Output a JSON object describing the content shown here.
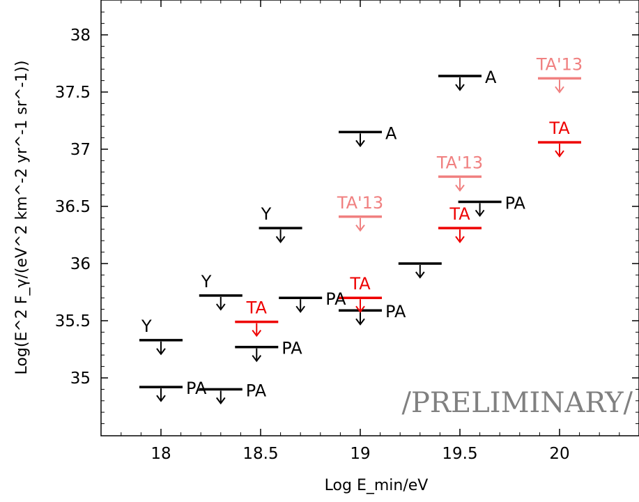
{
  "chart_data": {
    "type": "scatter",
    "title": "",
    "xlabel": "Log E_min/eV",
    "ylabel": "Log(E^2 F_γ/(eV^2 km^-2 yr^-1 sr^-1))",
    "xlim": [
      17.7,
      20.42
    ],
    "ylim": [
      34.5,
      38.3
    ],
    "xticks": [
      18,
      18.5,
      19,
      19.5,
      20
    ],
    "xtick_labels": [
      "18",
      "18.5",
      "19",
      "19.5",
      "20"
    ],
    "yticks": [
      35,
      35.5,
      36,
      36.5,
      37,
      37.5,
      38
    ],
    "ytick_labels": [
      "35",
      "35.5",
      "36",
      "36.5",
      "37",
      "37.5",
      "38"
    ],
    "grid": false,
    "marker": "upper-limit",
    "series": [
      {
        "name": "Y",
        "color": "#000000",
        "x": [
          18.0,
          18.3,
          18.6
        ],
        "y": [
          35.33,
          35.72,
          36.31
        ]
      },
      {
        "name": "PA",
        "color": "#000000",
        "x": [
          18.0,
          18.3,
          18.48,
          18.7,
          19.0,
          19.6
        ],
        "y": [
          34.92,
          34.9,
          35.27,
          35.7,
          35.59,
          36.54
        ]
      },
      {
        "name": "A",
        "color": "#000000",
        "x": [
          19.0,
          19.5
        ],
        "y": [
          37.15,
          37.64
        ]
      },
      {
        "name": "",
        "color": "#000000",
        "x": [
          19.3
        ],
        "y": [
          36.0
        ]
      },
      {
        "name": "TA",
        "color": "#ee0000",
        "x": [
          18.48,
          19.0,
          19.5,
          20.0
        ],
        "y": [
          35.49,
          35.7,
          36.31,
          37.06
        ]
      },
      {
        "name": "TA'13",
        "color": "#f08080",
        "x": [
          19.0,
          19.5,
          20.0
        ],
        "y": [
          36.41,
          36.76,
          37.62
        ]
      }
    ],
    "point_labels": [
      {
        "text": "Y",
        "x": 18.0,
        "y": 35.33,
        "color": "#000000"
      },
      {
        "text": "Y",
        "x": 18.3,
        "y": 35.72,
        "color": "#000000"
      },
      {
        "text": "Y",
        "x": 18.6,
        "y": 36.31,
        "color": "#000000"
      },
      {
        "text": "PA",
        "x": 18.0,
        "y": 34.92,
        "color": "#000000"
      },
      {
        "text": "PA",
        "x": 18.3,
        "y": 34.9,
        "color": "#000000"
      },
      {
        "text": "PA",
        "x": 18.48,
        "y": 35.27,
        "color": "#000000"
      },
      {
        "text": "PA",
        "x": 18.7,
        "y": 35.7,
        "color": "#000000"
      },
      {
        "text": "PA",
        "x": 19.0,
        "y": 35.59,
        "color": "#000000"
      },
      {
        "text": "PA",
        "x": 19.6,
        "y": 36.54,
        "color": "#000000"
      },
      {
        "text": "A",
        "x": 19.0,
        "y": 37.15,
        "color": "#000000"
      },
      {
        "text": "A",
        "x": 19.5,
        "y": 37.64,
        "color": "#000000"
      },
      {
        "text": "TA",
        "x": 18.48,
        "y": 35.49,
        "color": "#ee0000"
      },
      {
        "text": "TA",
        "x": 19.0,
        "y": 35.7,
        "color": "#ee0000"
      },
      {
        "text": "TA",
        "x": 19.5,
        "y": 36.31,
        "color": "#ee0000"
      },
      {
        "text": "TA",
        "x": 20.0,
        "y": 37.06,
        "color": "#ee0000"
      },
      {
        "text": "TA'13",
        "x": 19.0,
        "y": 36.41,
        "color": "#f08080"
      },
      {
        "text": "TA'13",
        "x": 19.5,
        "y": 36.76,
        "color": "#f08080"
      },
      {
        "text": "TA'13",
        "x": 20.0,
        "y": 37.62,
        "color": "#f08080"
      }
    ],
    "annotation": "/PRELIMINARY/"
  }
}
